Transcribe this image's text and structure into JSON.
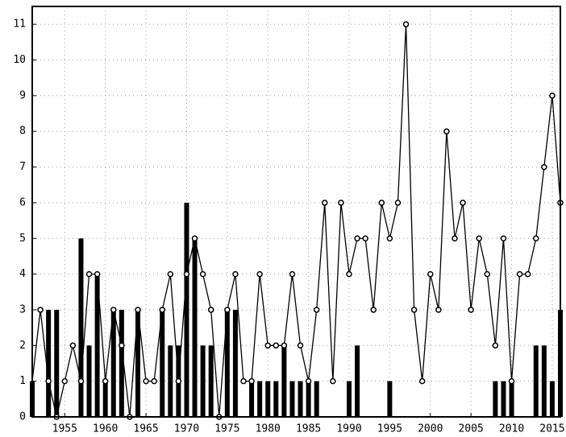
{
  "chart_data": {
    "type": "combo",
    "x": [
      1951,
      1952,
      1953,
      1954,
      1955,
      1956,
      1957,
      1958,
      1959,
      1960,
      1961,
      1962,
      1963,
      1964,
      1965,
      1966,
      1967,
      1968,
      1969,
      1970,
      1971,
      1972,
      1973,
      1974,
      1975,
      1976,
      1977,
      1978,
      1979,
      1980,
      1981,
      1982,
      1983,
      1984,
      1985,
      1986,
      1987,
      1988,
      1989,
      1990,
      1991,
      1992,
      1993,
      1994,
      1995,
      1996,
      1997,
      1998,
      1999,
      2000,
      2001,
      2002,
      2003,
      2004,
      2005,
      2006,
      2007,
      2008,
      2009,
      2010,
      2011,
      2012,
      2013,
      2014,
      2015,
      2016
    ],
    "series": [
      {
        "type": "bar",
        "color": "#000000",
        "values": [
          1,
          0,
          3,
          3,
          0,
          0,
          5,
          2,
          4,
          1,
          3,
          3,
          0,
          3,
          0,
          0,
          3,
          2,
          2,
          6,
          5,
          2,
          2,
          0,
          3,
          3,
          0,
          1,
          1,
          1,
          1,
          2,
          1,
          1,
          1,
          1,
          0,
          0,
          0,
          1,
          2,
          0,
          0,
          0,
          1,
          0,
          0,
          0,
          0,
          0,
          0,
          0,
          0,
          0,
          0,
          0,
          0,
          1,
          1,
          1,
          0,
          0,
          2,
          2,
          1,
          3
        ]
      },
      {
        "type": "line",
        "color": "#000000",
        "values": [
          1,
          3,
          1,
          0,
          1,
          2,
          1,
          4,
          4,
          1,
          3,
          2,
          0,
          3,
          1,
          1,
          3,
          4,
          1,
          4,
          5,
          4,
          3,
          0,
          3,
          4,
          1,
          1,
          4,
          2,
          2,
          2,
          4,
          2,
          1,
          3,
          6,
          1,
          6,
          4,
          5,
          5,
          3,
          6,
          5,
          6,
          11,
          3,
          1,
          4,
          3,
          8,
          5,
          6,
          3,
          5,
          4,
          2,
          5,
          1,
          4,
          4,
          5,
          7,
          9,
          6
        ]
      }
    ],
    "xlim": [
      1951,
      2016
    ],
    "xticks": [
      1955,
      1960,
      1965,
      1970,
      1975,
      1980,
      1985,
      1990,
      1995,
      2000,
      2005,
      2010,
      2015
    ],
    "ylim": [
      0,
      11.5
    ],
    "yticks": [
      0,
      1,
      2,
      3,
      4,
      5,
      6,
      7,
      8,
      9,
      10,
      11
    ],
    "grid": true
  }
}
